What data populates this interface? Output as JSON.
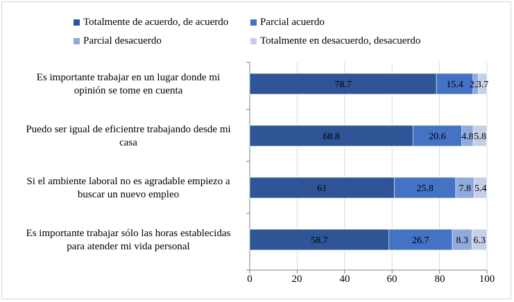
{
  "chart_data": {
    "type": "bar",
    "orientation": "horizontal",
    "stacked": true,
    "categories": [
      "Es importante trabajar en un lugar donde mi opinión se tome en cuenta",
      "Puedo ser igual de eficientre trabajando desde mi casa",
      "Si el ambiente laboral no es agradable empiezo a buscar un nuevo empleo",
      "Es importante trabajar sólo las horas establecidas para atender mi vida personal"
    ],
    "category_lines": [
      [
        "Es importante trabajar en un lugar donde mi",
        "opinión se tome en cuenta"
      ],
      [
        "Puedo ser igual de eficientre trabajando desde mi",
        "casa"
      ],
      [
        "Si el ambiente laboral no es agradable empiezo a",
        "buscar un nuevo empleo"
      ],
      [
        "Es importante trabajar sólo las horas establecidas",
        "para atender mi vida personal"
      ]
    ],
    "series": [
      {
        "name": "Totalmente de acuerdo, de acuerdo",
        "color": "#2f5597",
        "values": [
          78.7,
          68.8,
          61,
          58.7
        ],
        "labels": [
          "78.7",
          "68.8",
          "61",
          "58.7"
        ]
      },
      {
        "name": "Parcial acuerdo",
        "color": "#4472c4",
        "values": [
          15.4,
          20.6,
          25.8,
          26.7
        ],
        "labels": [
          "15.4",
          "20.6",
          "25.8",
          "26.7"
        ]
      },
      {
        "name": "Parcial desacuerdo",
        "color": "#8faadc",
        "values": [
          2.2,
          4.8,
          7.8,
          8.3
        ],
        "labels": [
          "2.2",
          "4.8",
          "7.8",
          "8.3"
        ]
      },
      {
        "name": "Totalmente en desacuerdo, desacuerdo",
        "color": "#c5d0e8",
        "values": [
          3.7,
          5.8,
          5.4,
          6.3
        ],
        "labels": [
          "3.7",
          "5.8",
          "5.4",
          "6.3"
        ]
      }
    ],
    "xlim": [
      0,
      100
    ],
    "xticks": [
      "0",
      "20",
      "40",
      "60",
      "80",
      "100"
    ],
    "grid": true,
    "legend_position": "top"
  }
}
